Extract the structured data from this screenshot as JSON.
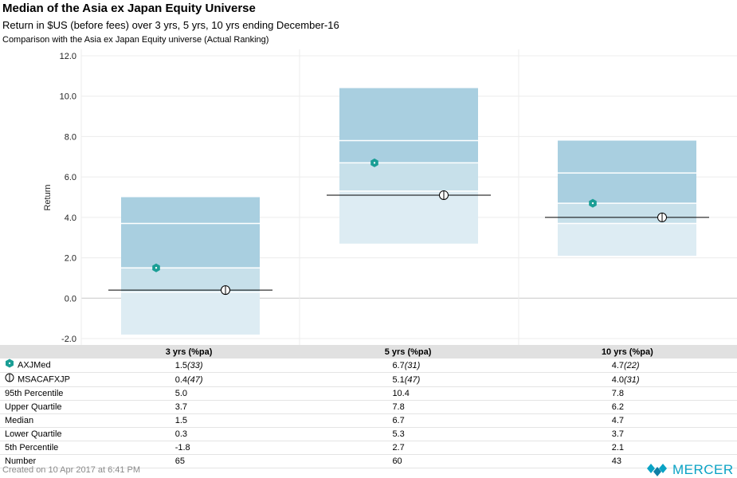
{
  "header": {
    "title": "Median of the Asia ex Japan Equity Universe",
    "subtitle": "Return in $US (before fees) over 3 yrs, 5 yrs, 10 yrs ending December-16",
    "subtitle2": "Comparison with the Asia ex Japan Equity universe (Actual Ranking)"
  },
  "colors": {
    "upper_band": "#a9cfe0",
    "mid_upper_band": "#c7e0ea",
    "lower_band": "#ddecf3",
    "axjmed_marker": "#1a9e95",
    "benchmark_line": "#000000"
  },
  "chart_data": {
    "type": "box",
    "ylabel": "Return",
    "ylim": [
      -2.0,
      12.0
    ],
    "yticks": [
      "12.0",
      "10.0",
      "8.0",
      "6.0",
      "4.0",
      "2.0",
      "0.0",
      "-2.0"
    ],
    "categories": [
      "3 yrs (%pa)",
      "5 yrs (%pa)",
      "10 yrs (%pa)"
    ],
    "percentile_95": [
      5.0,
      10.4,
      7.8
    ],
    "upper_quartile": [
      3.7,
      7.8,
      6.2
    ],
    "median": [
      1.5,
      6.7,
      4.7
    ],
    "lower_quartile": [
      0.3,
      5.3,
      3.7
    ],
    "percentile_5": [
      -1.8,
      2.7,
      2.1
    ],
    "series": [
      {
        "name": "AXJMed",
        "values": [
          1.5,
          6.7,
          4.7
        ],
        "ranks": [
          "(33)",
          "(31)",
          "(22)"
        ],
        "marker": "hexagon-icon"
      },
      {
        "name": "MSACAFXJP",
        "values": [
          0.4,
          5.1,
          4.0
        ],
        "ranks": [
          "(47)",
          "(47)",
          "(31)"
        ],
        "marker": "circle-line-icon"
      }
    ],
    "number": [
      65,
      60,
      43
    ]
  },
  "table": {
    "header": [
      "",
      "3 yrs (%pa)",
      "5 yrs (%pa)",
      "10 yrs (%pa)"
    ],
    "rows": [
      {
        "label": "AXJMed",
        "icon": "hexagon-icon",
        "cells": [
          {
            "v": "1.5",
            "r": "(33)"
          },
          {
            "v": "6.7",
            "r": "(31)"
          },
          {
            "v": "4.7",
            "r": "(22)"
          }
        ]
      },
      {
        "label": "MSACAFXJP",
        "icon": "circle-line-icon",
        "cells": [
          {
            "v": "0.4",
            "r": "(47)"
          },
          {
            "v": "5.1",
            "r": "(47)"
          },
          {
            "v": "4.0",
            "r": "(31)"
          }
        ]
      },
      {
        "label": "95th Percentile",
        "cells": [
          {
            "v": "5.0"
          },
          {
            "v": "10.4"
          },
          {
            "v": "7.8"
          }
        ]
      },
      {
        "label": "Upper Quartile",
        "cells": [
          {
            "v": "3.7"
          },
          {
            "v": "7.8"
          },
          {
            "v": "6.2"
          }
        ]
      },
      {
        "label": "Median",
        "cells": [
          {
            "v": "1.5"
          },
          {
            "v": "6.7"
          },
          {
            "v": "4.7"
          }
        ]
      },
      {
        "label": "Lower Quartile",
        "cells": [
          {
            "v": "0.3"
          },
          {
            "v": "5.3"
          },
          {
            "v": "3.7"
          }
        ]
      },
      {
        "label": "5th Percentile",
        "cells": [
          {
            "v": "-1.8"
          },
          {
            "v": "2.7"
          },
          {
            "v": "2.1"
          }
        ]
      },
      {
        "label": "Number",
        "cells": [
          {
            "v": "65"
          },
          {
            "v": "60"
          },
          {
            "v": "43"
          }
        ]
      }
    ]
  },
  "footer": {
    "created": "Created on 10 Apr 2017 at 6:41 PM",
    "brand": "MERCER"
  }
}
